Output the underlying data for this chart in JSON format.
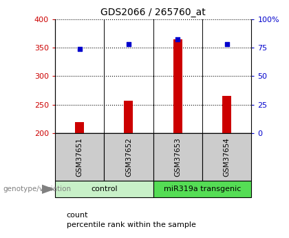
{
  "title": "GDS2066 / 265760_at",
  "samples": [
    "GSM37651",
    "GSM37652",
    "GSM37653",
    "GSM37654"
  ],
  "counts": [
    220,
    257,
    365,
    265
  ],
  "percentiles": [
    74,
    78,
    82,
    78
  ],
  "ylim_left": [
    200,
    400
  ],
  "ylim_right": [
    0,
    100
  ],
  "yticks_left": [
    200,
    250,
    300,
    350,
    400
  ],
  "yticks_right": [
    0,
    25,
    50,
    75,
    100
  ],
  "bar_color": "#cc0000",
  "dot_color": "#0000cc",
  "groups": [
    {
      "label": "control",
      "samples": [
        0,
        1
      ],
      "color": "#c8f0c8"
    },
    {
      "label": "miR319a transgenic",
      "samples": [
        2,
        3
      ],
      "color": "#55dd55"
    }
  ],
  "legend_count_label": "count",
  "legend_pct_label": "percentile rank within the sample",
  "xlabel_left": "genotype/variation",
  "background_label_box": "#cccccc",
  "bar_width": 0.18
}
